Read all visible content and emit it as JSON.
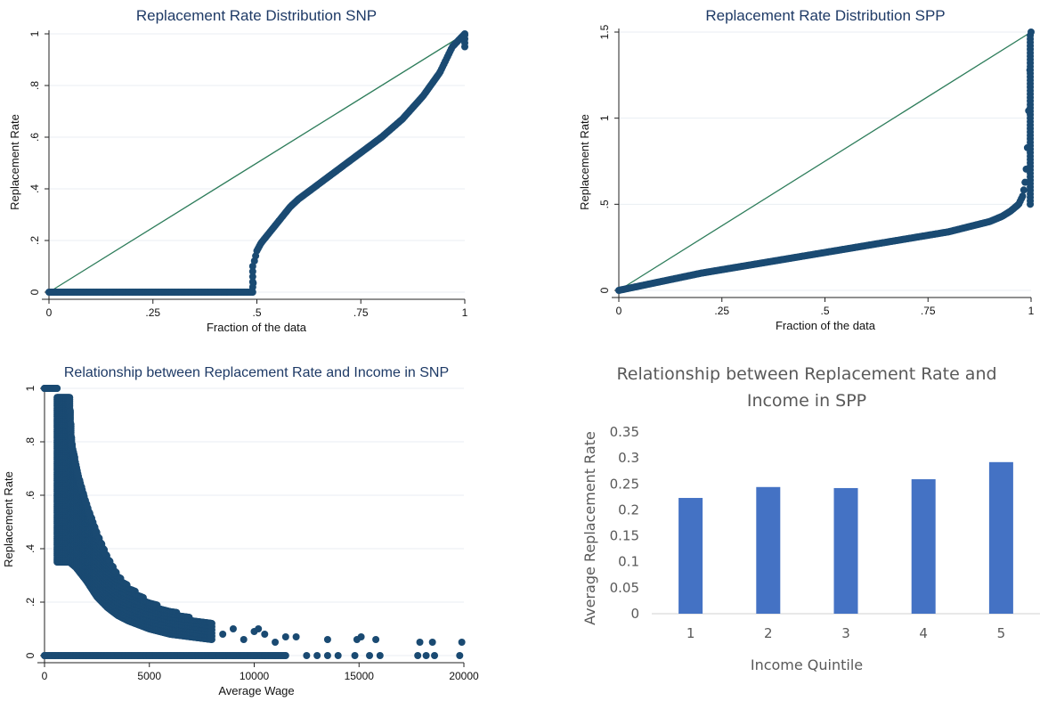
{
  "colors": {
    "marker": "#1a4a72",
    "diagonal": "#2e7d5b",
    "bar": "#4472c4",
    "grid": "#e9eef3",
    "title": "#1e3a66"
  },
  "chart_data": [
    {
      "type": "scatter",
      "title": "Replacement Rate Distribution SNP",
      "xlabel": "Fraction of the data",
      "ylabel": "Replacement Rate",
      "xlim": [
        0,
        1
      ],
      "ylim": [
        0,
        1
      ],
      "xtick_labels": [
        "0",
        ".25",
        ".5",
        ".75",
        "1"
      ],
      "ytick_labels": [
        "0",
        ".2",
        ".4",
        ".6",
        ".8",
        "1"
      ],
      "grid": true,
      "reference_line": [
        [
          0,
          0
        ],
        [
          1,
          1
        ]
      ],
      "series": [
        {
          "x": [
            0,
            0.1,
            0.2,
            0.3,
            0.4,
            0.49,
            0.494,
            0.5,
            0.51,
            0.53,
            0.55,
            0.58,
            0.6,
            0.65,
            0.7,
            0.75,
            0.8,
            0.85,
            0.9,
            0.94,
            0.97,
            1.0
          ],
          "y": [
            0,
            0,
            0,
            0,
            0,
            0,
            0.12,
            0.16,
            0.19,
            0.23,
            0.27,
            0.33,
            0.36,
            0.42,
            0.48,
            0.54,
            0.6,
            0.67,
            0.76,
            0.85,
            0.95,
            1.0
          ]
        }
      ]
    },
    {
      "type": "scatter",
      "title": "Replacement Rate Distribution SPP",
      "xlabel": "Fraction of the data",
      "ylabel": "Replacement Rate",
      "xlim": [
        0,
        1
      ],
      "ylim": [
        0,
        1.5
      ],
      "xtick_labels": [
        "0",
        ".25",
        ".5",
        ".75",
        "1"
      ],
      "ytick_labels": [
        "0",
        ".5",
        "1",
        "1.5"
      ],
      "grid": true,
      "reference_line": [
        [
          0,
          0
        ],
        [
          1,
          1.5
        ]
      ],
      "series": [
        {
          "x": [
            0,
            0.1,
            0.2,
            0.3,
            0.4,
            0.5,
            0.6,
            0.7,
            0.8,
            0.85,
            0.9,
            0.93,
            0.95,
            0.97,
            0.98,
            0.985,
            0.99,
            0.993,
            0.996,
            0.998,
            1.0
          ],
          "y": [
            0,
            0.05,
            0.1,
            0.14,
            0.18,
            0.22,
            0.26,
            0.3,
            0.34,
            0.37,
            0.4,
            0.43,
            0.46,
            0.5,
            0.55,
            0.62,
            0.75,
            0.95,
            1.2,
            1.35,
            1.5
          ]
        }
      ]
    },
    {
      "type": "scatter",
      "title": "Relationship between Replacement Rate and Income in SNP",
      "xlabel": "Average Wage",
      "ylabel": "Replacement Rate",
      "xlim": [
        0,
        20000
      ],
      "ylim": [
        0,
        1
      ],
      "xtick_labels": [
        "0",
        "5000",
        "10000",
        "15000",
        "20000"
      ],
      "ytick_labels": [
        "0",
        ".2",
        ".4",
        ".6",
        ".8",
        "1"
      ],
      "grid": true,
      "series": [
        {
          "name": "",
          "band_upper": [
            [
              600,
              0.97
            ],
            [
              1200,
              0.97
            ],
            [
              1300,
              0.8
            ],
            [
              1600,
              0.68
            ],
            [
              2000,
              0.57
            ],
            [
              2500,
              0.46
            ],
            [
              3000,
              0.37
            ],
            [
              3500,
              0.3
            ],
            [
              4000,
              0.26
            ],
            [
              5000,
              0.2
            ],
            [
              6000,
              0.17
            ],
            [
              7000,
              0.14
            ],
            [
              8000,
              0.12
            ]
          ],
          "band_lower": [
            [
              600,
              0.35
            ],
            [
              1200,
              0.35
            ],
            [
              1500,
              0.33
            ],
            [
              2000,
              0.28
            ],
            [
              2500,
              0.22
            ],
            [
              3000,
              0.18
            ],
            [
              3500,
              0.15
            ],
            [
              4000,
              0.13
            ],
            [
              5000,
              0.1
            ],
            [
              6000,
              0.08
            ],
            [
              7000,
              0.07
            ],
            [
              8000,
              0.06
            ]
          ],
          "top_row": [
            [
              0,
              1.0
            ],
            [
              250,
              1.0
            ],
            [
              500,
              1.0
            ]
          ],
          "outliers": [
            [
              8500,
              0.08
            ],
            [
              9000,
              0.1
            ],
            [
              9500,
              0.06
            ],
            [
              10000,
              0.09
            ],
            [
              10200,
              0.1
            ],
            [
              10500,
              0.08
            ],
            [
              11000,
              0.05
            ],
            [
              11500,
              0.07
            ],
            [
              12000,
              0.07
            ],
            [
              13500,
              0.06
            ],
            [
              14900,
              0.06
            ],
            [
              15100,
              0.07
            ],
            [
              15800,
              0.06
            ],
            [
              17900,
              0.05
            ],
            [
              18500,
              0.05
            ],
            [
              19900,
              0.05
            ]
          ],
          "zero_row_x": [
            0,
            500,
            1000,
            1500,
            2000,
            2500,
            3000,
            3500,
            4000,
            4500,
            5000,
            5500,
            6000,
            6500,
            7000,
            7500,
            8000,
            8500,
            9000,
            9500,
            10000,
            10500,
            11000,
            11500,
            12500,
            13000,
            13500,
            14000,
            14800,
            15500,
            16000,
            17800,
            18200,
            18600,
            19800
          ]
        }
      ]
    },
    {
      "type": "bar",
      "title": "Relationship between Replacement Rate and Income in SPP",
      "xlabel": "Income Quintile",
      "ylabel": "Average Replacement Rate",
      "categories": [
        "1",
        "2",
        "3",
        "4",
        "5"
      ],
      "values": [
        0.223,
        0.244,
        0.242,
        0.259,
        0.292
      ],
      "ylim": [
        0,
        0.35
      ],
      "ytick_labels": [
        "0",
        "0.05",
        "0.1",
        "0.15",
        "0.2",
        "0.25",
        "0.3",
        "0.35"
      ],
      "grid": false
    }
  ]
}
